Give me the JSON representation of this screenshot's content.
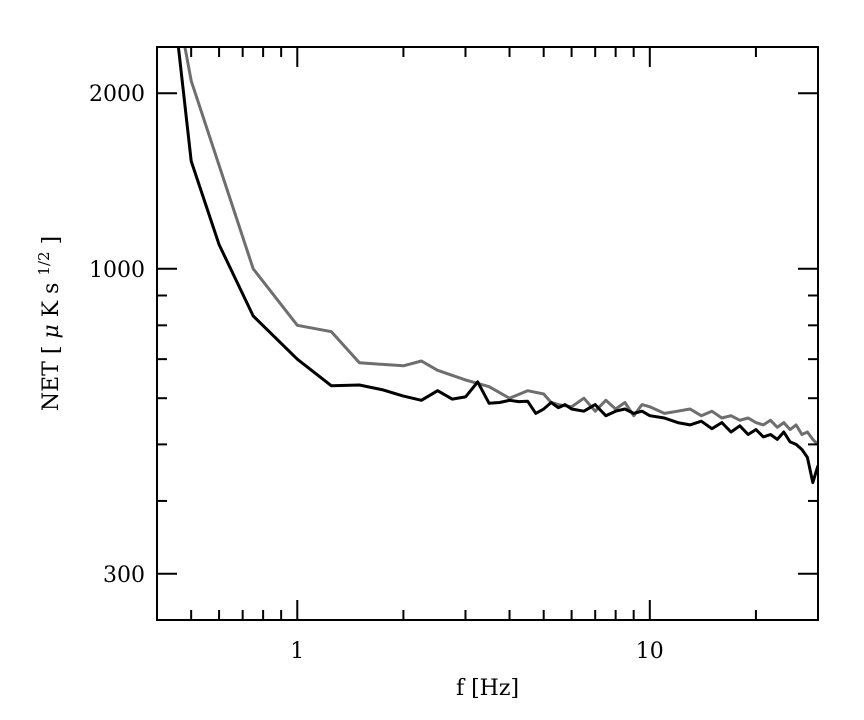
{
  "chart_data": {
    "type": "line",
    "xlabel": "f [Hz]",
    "ylabel": {
      "prefix": "NET [",
      "mu": "μ",
      "unit": "K s",
      "exponent": "1/2",
      "suffix": "]"
    },
    "x_scale": "log",
    "y_scale": "log",
    "xlim": [
      0.4,
      30
    ],
    "ylim": [
      250,
      2400
    ],
    "x_ticks": [
      {
        "value": 1,
        "label": "1"
      },
      {
        "value": 10,
        "label": "10"
      }
    ],
    "y_ticks": [
      {
        "value": 300,
        "label": "300"
      },
      {
        "value": 1000,
        "label": "1000"
      },
      {
        "value": 2000,
        "label": "2000"
      }
    ],
    "series": [
      {
        "color": "#000000",
        "x": [
          0.46,
          0.5,
          0.6,
          0.75,
          1.0,
          1.25,
          1.5,
          1.75,
          2.0,
          2.25,
          2.5,
          2.75,
          3.0,
          3.25,
          3.5,
          3.75,
          4.0,
          4.25,
          4.5,
          4.75,
          5.0,
          5.25,
          5.5,
          5.75,
          6.0,
          6.5,
          7.0,
          7.5,
          8.0,
          8.5,
          9.0,
          9.5,
          10.0,
          11.0,
          12.0,
          13.0,
          14.0,
          15.0,
          16.0,
          17.0,
          18.0,
          19.0,
          20.0,
          21.0,
          22.0,
          23.0,
          24.0,
          25.0,
          26.0,
          27.0,
          28.0,
          29.0,
          30.0
        ],
        "y": [
          2400,
          1530,
          1100,
          830,
          700,
          630,
          632,
          620,
          605,
          595,
          618,
          598,
          603,
          640,
          588,
          590,
          595,
          592,
          593,
          565,
          575,
          590,
          578,
          585,
          575,
          570,
          585,
          560,
          570,
          575,
          565,
          570,
          560,
          555,
          545,
          540,
          548,
          532,
          545,
          525,
          538,
          520,
          530,
          515,
          520,
          510,
          525,
          505,
          500,
          490,
          475,
          430,
          460
        ]
      },
      {
        "color": "#6e6e6e",
        "x": [
          0.48,
          0.5,
          0.75,
          1.0,
          1.25,
          1.5,
          2.0,
          2.25,
          2.5,
          3.0,
          3.5,
          4.0,
          4.5,
          5.0,
          5.25,
          5.5,
          6.0,
          6.5,
          7.0,
          7.5,
          8.0,
          8.5,
          9.0,
          9.5,
          10.0,
          11.0,
          12.0,
          13.0,
          14.0,
          15.0,
          16.0,
          17.0,
          18.0,
          19.0,
          20.0,
          21.0,
          22.0,
          23.0,
          24.0,
          25.0,
          26.0,
          27.0,
          28.0,
          29.0,
          30.0
        ],
        "y": [
          2400,
          2100,
          1000,
          800,
          780,
          690,
          682,
          695,
          670,
          645,
          628,
          600,
          618,
          610,
          590,
          585,
          580,
          600,
          570,
          595,
          575,
          590,
          560,
          585,
          580,
          565,
          570,
          575,
          560,
          570,
          555,
          560,
          550,
          555,
          545,
          540,
          550,
          535,
          545,
          530,
          540,
          520,
          525,
          510,
          500
        ]
      }
    ]
  }
}
